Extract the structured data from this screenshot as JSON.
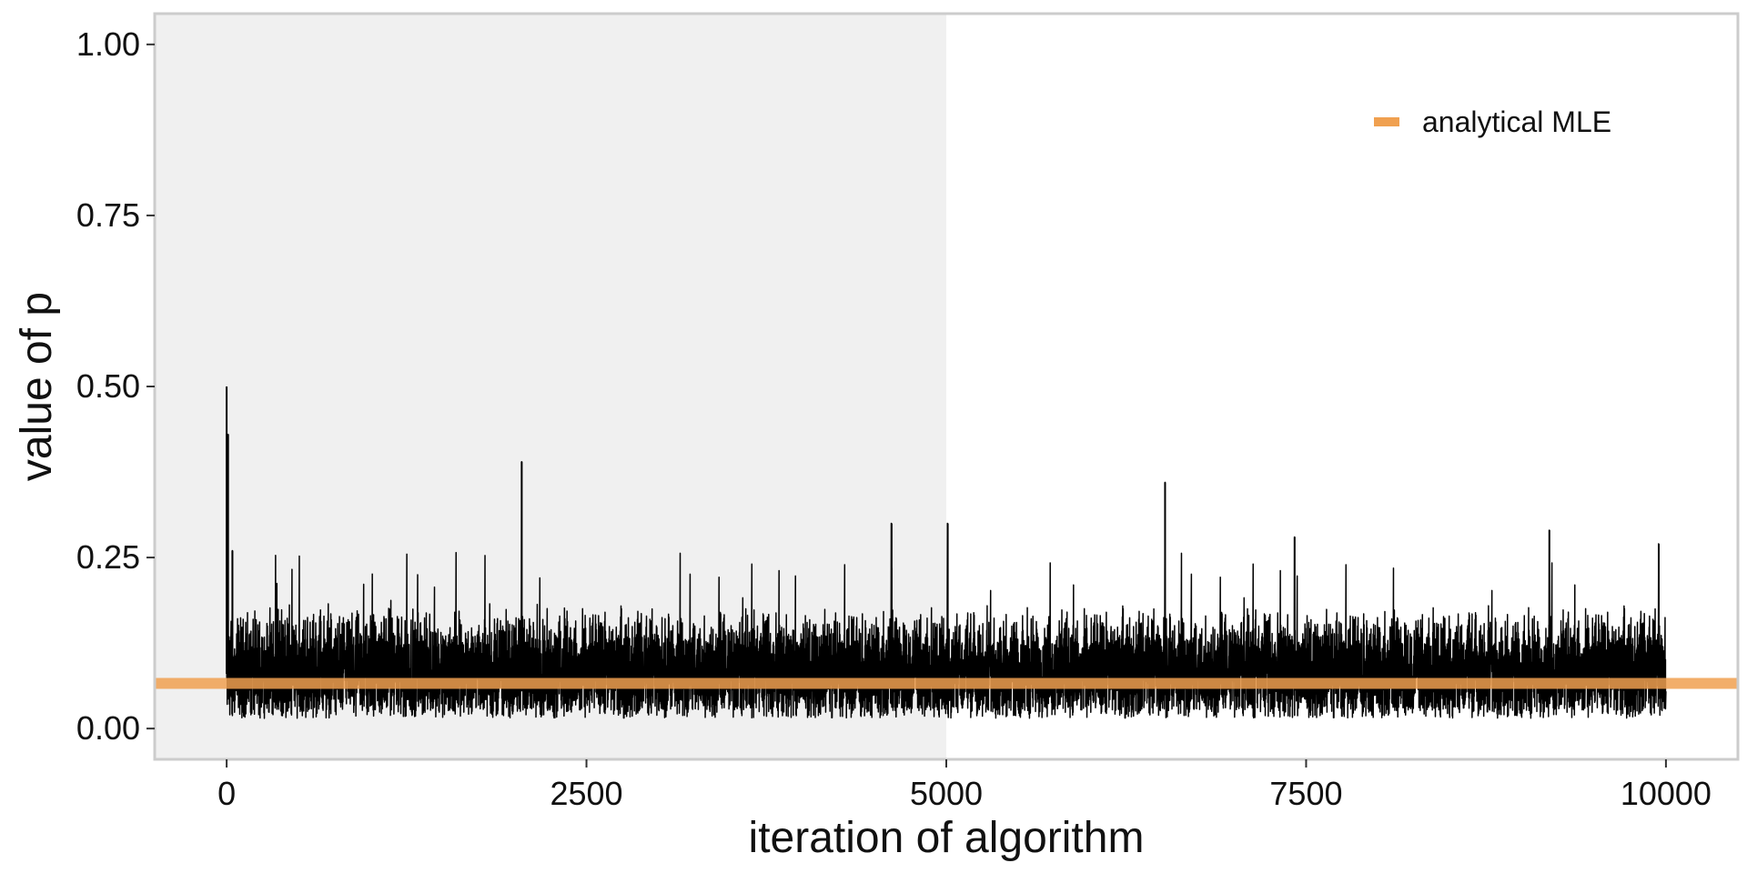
{
  "chart_data": {
    "type": "line",
    "title": "",
    "xlabel": "iteration of algorithm",
    "ylabel": "value of p",
    "xlim": [
      -500,
      10500
    ],
    "ylim": [
      -0.045,
      1.045
    ],
    "x_ticks": [
      0,
      2500,
      5000,
      7500,
      10000
    ],
    "x_tick_labels": [
      "0",
      "2500",
      "5000",
      "7500",
      "10000"
    ],
    "y_ticks": [
      0,
      0.25,
      0.5,
      0.75,
      1
    ],
    "y_tick_labels": [
      "0.00",
      "0.25",
      "0.50",
      "0.75",
      "1.00"
    ],
    "grid": false,
    "legend_position": "top-right",
    "shaded_region": {
      "x_start": -500,
      "x_end": 5000,
      "color": "#f0f0f0"
    },
    "reference_line": {
      "name": "analytical MLE",
      "y": 0.066,
      "color": "#f0a050"
    },
    "trace": {
      "color": "#000000",
      "n_iterations": 10000,
      "start_value": 0.5,
      "typical_range": [
        0.01,
        0.2
      ],
      "notable_points": [
        {
          "x": 0,
          "y": 0.5
        },
        {
          "x": 10,
          "y": 0.43
        },
        {
          "x": 40,
          "y": 0.26
        },
        {
          "x": 2050,
          "y": 0.39
        },
        {
          "x": 4620,
          "y": 0.3
        },
        {
          "x": 5010,
          "y": 0.3
        },
        {
          "x": 6520,
          "y": 0.36
        },
        {
          "x": 7420,
          "y": 0.28
        },
        {
          "x": 9190,
          "y": 0.29
        },
        {
          "x": 9950,
          "y": 0.27
        }
      ]
    }
  }
}
